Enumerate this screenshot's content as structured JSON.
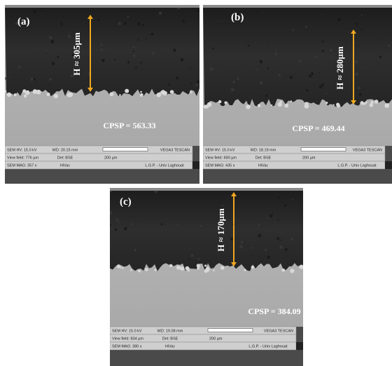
{
  "panels": [
    {
      "label": "(a)",
      "height_label": "H ≈ 305µm",
      "cpsp": "CPSP = 563.33",
      "info": [
        [
          "SEM HV: 15.0 kV",
          "WD: 20.15 mm",
          "VEGA3 TESCAN"
        ],
        [
          "View field: 776 µm",
          "Det: BSE",
          "200 µm"
        ],
        [
          "SEM MAG: 357 x",
          "HiVac",
          "L.G.P. - Univ Laghouat"
        ]
      ]
    },
    {
      "label": "(b)",
      "height_label": "H ≈ 280µm",
      "cpsp": "CPSP = 469.44",
      "info": [
        [
          "SEM HV: 15.0 kV",
          "WD: 18.19 mm",
          "VEGA3 TESCAN"
        ],
        [
          "View field: 690 µm",
          "Det: BSE",
          "200 µm"
        ],
        [
          "SEM MAG: 435 x",
          "HiVac",
          "L.G.P. - Univ Laghouat"
        ]
      ]
    },
    {
      "label": "(c)",
      "height_label": "H ≈ 170µm",
      "cpsp": "CPSP = 384.09",
      "info": [
        [
          "SEM HV: 15.0 kV",
          "WD: 19.08 mm",
          "VEGA3 TESCAN"
        ],
        [
          "View field: 834 µm",
          "Det: BSE",
          "200 µm"
        ],
        [
          "SEM MAG: 380 x",
          "HiVac",
          "L.G.P. - Univ Laghouat"
        ]
      ]
    }
  ]
}
